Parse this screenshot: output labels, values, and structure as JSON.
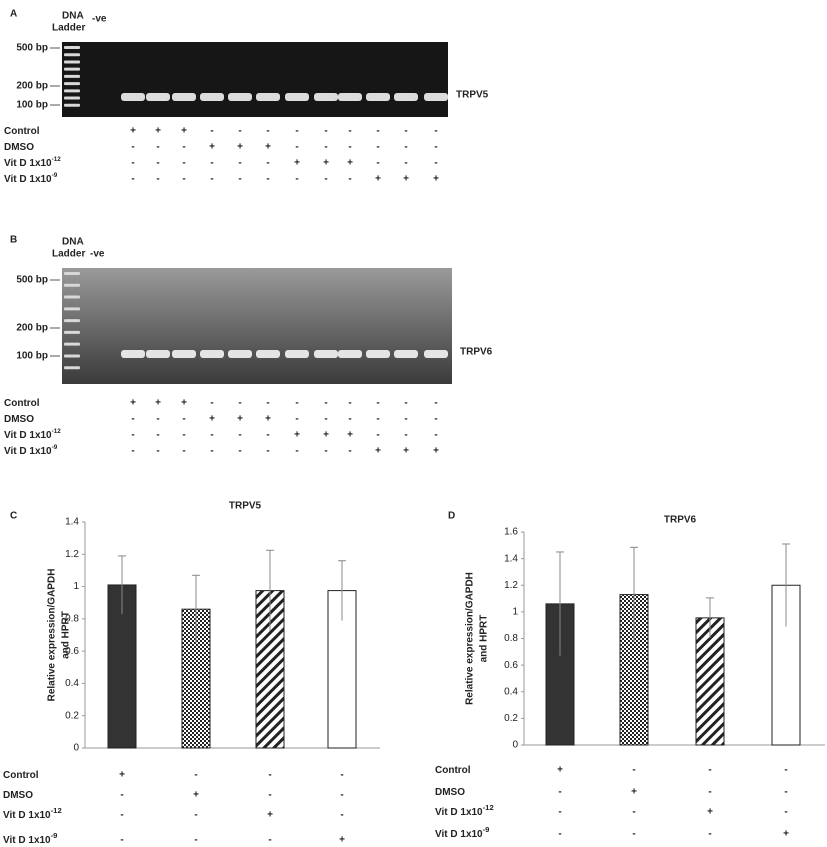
{
  "gels": [
    {
      "letter": "A",
      "ladder_label": [
        "DNA",
        "Ladder"
      ],
      "negative_label": "-ve",
      "markers": [
        "500 bp",
        "200 bp",
        "100 bp"
      ],
      "gene": "TRPV5",
      "conditions": [
        {
          "name": "Control",
          "signs": [
            "+",
            "+",
            "+",
            "-",
            "-",
            "-",
            "-",
            "-",
            "-",
            "-",
            "-",
            "-"
          ]
        },
        {
          "name": "DMSO",
          "signs": [
            "-",
            "-",
            "-",
            "+",
            "+",
            "+",
            "-",
            "-",
            "-",
            "-",
            "-",
            "-"
          ]
        },
        {
          "name": "Vit D 1x10",
          "exponent": "-12",
          "signs": [
            "-",
            "-",
            "-",
            "-",
            "-",
            "-",
            "+",
            "+",
            "+",
            "-",
            "-",
            "-"
          ]
        },
        {
          "name": "Vit D 1x10",
          "exponent": "-9",
          "signs": [
            "-",
            "-",
            "-",
            "-",
            "-",
            "-",
            "-",
            "-",
            "-",
            "+",
            "+",
            "+"
          ]
        }
      ]
    },
    {
      "letter": "B",
      "ladder_label": [
        "DNA",
        "Ladder"
      ],
      "negative_label": "-ve",
      "markers": [
        "500 bp",
        "200 bp",
        "100 bp"
      ],
      "gene": "TRPV6",
      "conditions": [
        {
          "name": "Control",
          "signs": [
            "+",
            "+",
            "+",
            "-",
            "-",
            "-",
            "-",
            "-",
            "-",
            "-",
            "-",
            "-"
          ]
        },
        {
          "name": "DMSO",
          "signs": [
            "-",
            "-",
            "-",
            "+",
            "+",
            "+",
            "-",
            "-",
            "-",
            "-",
            "-",
            "-"
          ]
        },
        {
          "name": "Vit D 1x10",
          "exponent": "-12",
          "signs": [
            "-",
            "-",
            "-",
            "-",
            "-",
            "-",
            "+",
            "+",
            "+",
            "-",
            "-",
            "-"
          ]
        },
        {
          "name": "Vit D 1x10",
          "exponent": "-9",
          "signs": [
            "-",
            "-",
            "-",
            "-",
            "-",
            "-",
            "-",
            "-",
            "-",
            "+",
            "+",
            "+"
          ]
        }
      ]
    }
  ],
  "chart_data": [
    {
      "type": "bar",
      "letter": "C",
      "title": "TRPV5",
      "y_label": [
        "Relative expression/GAPDH",
        "and HPRT"
      ],
      "ylim": [
        0,
        1.4
      ],
      "yticks": [
        0,
        0.2,
        0.4,
        0.6,
        0.8,
        1,
        1.2,
        1.4
      ],
      "values": [
        1.01,
        0.86,
        0.975,
        0.975
      ],
      "errors": [
        0.18,
        0.21,
        0.25,
        0.185
      ],
      "patterns": [
        "solid",
        "checker",
        "hatch",
        "open"
      ],
      "conditions": [
        {
          "name": "Control",
          "signs": [
            "+",
            "-",
            "-",
            "-"
          ]
        },
        {
          "name": "DMSO",
          "signs": [
            "-",
            "+",
            "-",
            "-"
          ]
        },
        {
          "name": "Vit D 1x10",
          "exponent": "-12",
          "signs": [
            "-",
            "-",
            "+",
            "-"
          ]
        },
        {
          "name": "Vit D 1x10",
          "exponent": "-9",
          "signs": [
            "-",
            "-",
            "-",
            "+"
          ]
        }
      ]
    },
    {
      "type": "bar",
      "letter": "D",
      "title": "TRPV6",
      "y_label": [
        "Relative expression/GAPDH",
        "and HPRT"
      ],
      "ylim": [
        0,
        1.6
      ],
      "yticks": [
        0,
        0.2,
        0.4,
        0.6,
        0.8,
        1,
        1.2,
        1.4,
        1.6
      ],
      "values": [
        1.06,
        1.13,
        0.955,
        1.2
      ],
      "errors": [
        0.39,
        0.355,
        0.15,
        0.31
      ],
      "patterns": [
        "solid",
        "checker",
        "hatch",
        "open"
      ],
      "conditions": [
        {
          "name": "Control",
          "signs": [
            "+",
            "-",
            "-",
            "-"
          ]
        },
        {
          "name": "DMSO",
          "signs": [
            "-",
            "+",
            "-",
            "-"
          ]
        },
        {
          "name": "Vit D 1x10",
          "exponent": "-12",
          "signs": [
            "-",
            "-",
            "+",
            "-"
          ]
        },
        {
          "name": "Vit D 1x10",
          "exponent": "-9",
          "signs": [
            "-",
            "-",
            "-",
            "+"
          ]
        }
      ]
    }
  ]
}
